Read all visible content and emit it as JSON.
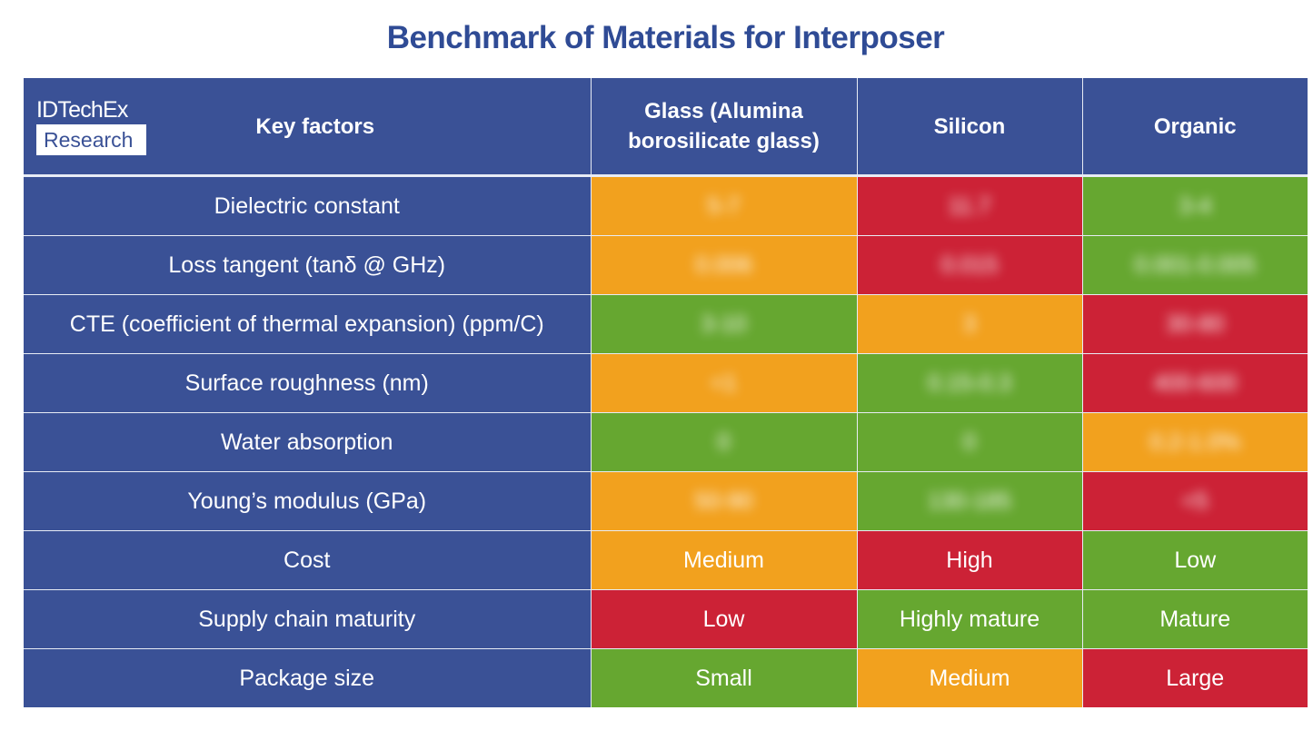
{
  "title": "Benchmark of Materials for Interposer",
  "logo": {
    "line1": "IDTechEx",
    "line2": "Research"
  },
  "colors": {
    "header_blue": "#3a5196",
    "title_blue": "#2f4b95",
    "good": "#66a730",
    "medium": "#f2a11e",
    "poor": "#cc2236"
  },
  "headers": [
    "Key factors",
    "Glass (Alumina borosilicate glass)",
    "Silicon",
    "Organic"
  ],
  "rows": [
    {
      "factor": "Dielectric constant",
      "cells": [
        {
          "text": "5-7",
          "rating": "orange",
          "obscured": true
        },
        {
          "text": "11.7",
          "rating": "red",
          "obscured": true
        },
        {
          "text": "3-4",
          "rating": "green",
          "obscured": true
        }
      ]
    },
    {
      "factor": "Loss tangent (tanδ @ GHz)",
      "cells": [
        {
          "text": "0.006",
          "rating": "orange",
          "obscured": true
        },
        {
          "text": "0.015",
          "rating": "red",
          "obscured": true
        },
        {
          "text": "0.001-0.005",
          "rating": "green",
          "obscured": true
        }
      ]
    },
    {
      "factor": "CTE (coefficient of thermal expansion) (ppm/C)",
      "cells": [
        {
          "text": "3-10",
          "rating": "green",
          "obscured": true
        },
        {
          "text": "3",
          "rating": "orange",
          "obscured": true
        },
        {
          "text": "30-80",
          "rating": "red",
          "obscured": true
        }
      ]
    },
    {
      "factor": "Surface roughness (nm)",
      "cells": [
        {
          "text": "<1",
          "rating": "orange",
          "obscured": true
        },
        {
          "text": "0.15-0.3",
          "rating": "green",
          "obscured": true
        },
        {
          "text": "400-600",
          "rating": "red",
          "obscured": true
        }
      ]
    },
    {
      "factor": "Water absorption",
      "cells": [
        {
          "text": "0",
          "rating": "green",
          "obscured": true
        },
        {
          "text": "0",
          "rating": "green",
          "obscured": true
        },
        {
          "text": "0.2-1.0%",
          "rating": "orange",
          "obscured": true
        }
      ]
    },
    {
      "factor": "Young’s modulus (GPa)",
      "cells": [
        {
          "text": "50-90",
          "rating": "orange",
          "obscured": true
        },
        {
          "text": "130-185",
          "rating": "green",
          "obscured": true
        },
        {
          "text": "<5",
          "rating": "red",
          "obscured": true
        }
      ]
    },
    {
      "factor": "Cost",
      "cells": [
        {
          "text": "Medium",
          "rating": "orange",
          "obscured": false
        },
        {
          "text": "High",
          "rating": "red",
          "obscured": false
        },
        {
          "text": "Low",
          "rating": "green",
          "obscured": false
        }
      ]
    },
    {
      "factor": "Supply chain maturity",
      "cells": [
        {
          "text": "Low",
          "rating": "red",
          "obscured": false
        },
        {
          "text": "Highly mature",
          "rating": "green",
          "obscured": false
        },
        {
          "text": "Mature",
          "rating": "green",
          "obscured": false
        }
      ]
    },
    {
      "factor": "Package size",
      "cells": [
        {
          "text": "Small",
          "rating": "green",
          "obscured": false
        },
        {
          "text": "Medium",
          "rating": "orange",
          "obscured": false
        },
        {
          "text": "Large",
          "rating": "red",
          "obscured": false
        }
      ]
    }
  ]
}
